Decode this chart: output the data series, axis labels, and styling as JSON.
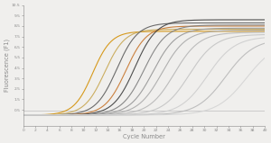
{
  "xlabel": "Cycle Number",
  "ylabel": "Fluorescence (F1)",
  "xlim": [
    0,
    40
  ],
  "ylim": [
    -1.0,
    10.5
  ],
  "xticks": [
    0,
    2,
    4,
    6,
    8,
    10,
    12,
    14,
    16,
    18,
    20,
    22,
    24,
    26,
    28,
    30,
    32,
    34,
    36,
    38,
    40
  ],
  "yticks": [
    0.5,
    1.5,
    2.5,
    3.5,
    4.5,
    5.5,
    6.5,
    7.5,
    8.5,
    9.5,
    10.5
  ],
  "ytick_labels": [
    "0.5",
    "1.5",
    "2.5",
    "3.5",
    "4.5",
    "5.5",
    "6.5",
    "7.5",
    "8.5",
    "9.5",
    "10.5"
  ],
  "curves": [
    {
      "midpoint": 11.5,
      "top": 8.0,
      "k": 0.65,
      "color": "#D4920A",
      "lw": 0.8
    },
    {
      "midpoint": 13.5,
      "top": 8.2,
      "k": 0.6,
      "color": "#C8A855",
      "lw": 0.8
    },
    {
      "midpoint": 15.5,
      "top": 8.8,
      "k": 0.58,
      "color": "#606060",
      "lw": 0.8
    },
    {
      "midpoint": 17.0,
      "top": 8.5,
      "k": 0.58,
      "color": "#C87830",
      "lw": 0.8
    },
    {
      "midpoint": 18.5,
      "top": 9.1,
      "k": 0.56,
      "color": "#404040",
      "lw": 0.8
    },
    {
      "midpoint": 20.0,
      "top": 8.6,
      "k": 0.54,
      "color": "#808080",
      "lw": 0.8
    },
    {
      "midpoint": 21.5,
      "top": 8.3,
      "k": 0.52,
      "color": "#989898",
      "lw": 0.8
    },
    {
      "midpoint": 23.0,
      "top": 8.1,
      "k": 0.5,
      "color": "#ABABAB",
      "lw": 0.8
    },
    {
      "midpoint": 25.0,
      "top": 7.9,
      "k": 0.48,
      "color": "#B8B8B8",
      "lw": 0.8
    },
    {
      "midpoint": 27.5,
      "top": 7.7,
      "k": 0.46,
      "color": "#C5C5C5",
      "lw": 0.8
    },
    {
      "midpoint": 30.5,
      "top": 7.5,
      "k": 0.44,
      "color": "#CFCFCF",
      "lw": 0.8
    },
    {
      "midpoint": 33.5,
      "top": 7.3,
      "k": 0.42,
      "color": "#BABABA",
      "lw": 0.8
    },
    {
      "midpoint": 37.0,
      "top": 7.1,
      "k": 0.4,
      "color": "#D5D5D5",
      "lw": 0.8
    }
  ],
  "baseline_y": 0.45,
  "baseline_color": "#B0B0B0",
  "background_color": "#F0EFED",
  "tick_fontsize": 3.2,
  "label_fontsize": 4.8,
  "axis_color": "#888888"
}
